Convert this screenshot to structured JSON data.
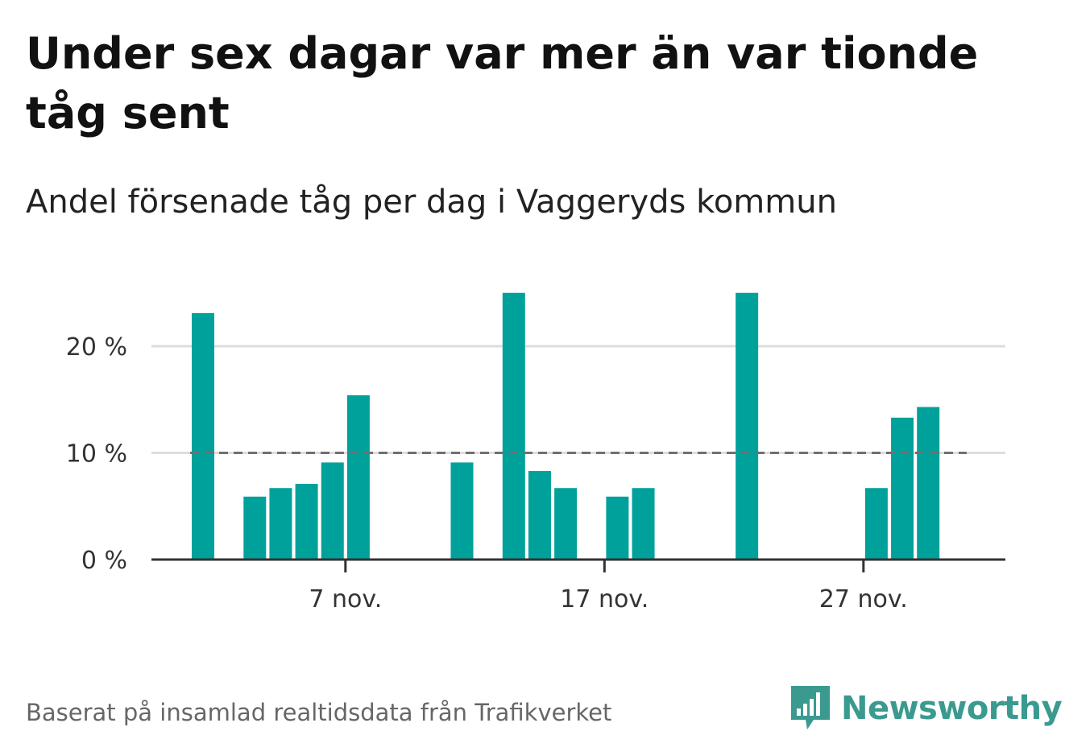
{
  "header": {
    "title": "Under sex dagar var mer än var tionde tåg sent",
    "subtitle": "Andel försenade tåg per dag i Vaggeryds kommun"
  },
  "footer": {
    "source": "Baserat på insamlad realtidsdata från Trafikverket",
    "brand": "Newsworthy"
  },
  "colors": {
    "bar": "#00a19a",
    "reference_line": "#707070",
    "grid": "#dddddd",
    "axis": "#333333",
    "brand": "#3a9a8f"
  },
  "chart_data": {
    "type": "bar",
    "title": "Under sex dagar var mer än var tionde tåg sent",
    "subtitle": "Andel försenade tåg per dag i Vaggeryds kommun",
    "x": [
      "1 nov.",
      "2 nov.",
      "3 nov.",
      "4 nov.",
      "5 nov.",
      "6 nov.",
      "7 nov.",
      "8 nov.",
      "9 nov.",
      "10 nov.",
      "11 nov.",
      "12 nov.",
      "13 nov.",
      "14 nov.",
      "15 nov.",
      "16 nov.",
      "17 nov.",
      "18 nov.",
      "19 nov.",
      "20 nov.",
      "21 nov.",
      "22 nov.",
      "23 nov.",
      "24 nov.",
      "25 nov.",
      "26 nov.",
      "27 nov.",
      "28 nov.",
      "29 nov.",
      "30 nov."
    ],
    "values": [
      23.1,
      0,
      5.9,
      6.7,
      7.1,
      9.1,
      15.4,
      0,
      0,
      0,
      9.1,
      0,
      25.0,
      8.3,
      6.7,
      0,
      5.9,
      6.7,
      0,
      0,
      0,
      25.0,
      0,
      0,
      0,
      0,
      6.7,
      13.3,
      14.3,
      0
    ],
    "ylim": [
      0,
      25
    ],
    "yticks": [
      0,
      10,
      20
    ],
    "ytick_labels": [
      "0 %",
      "10 %",
      "20 %"
    ],
    "xtick_labels": [
      "7 nov.",
      "17 nov.",
      "27 nov."
    ],
    "xtick_dates": [
      "7 nov.",
      "17 nov.",
      "27 nov."
    ],
    "reference_line": 10,
    "grid": true,
    "ylabel": "",
    "xlabel": ""
  }
}
